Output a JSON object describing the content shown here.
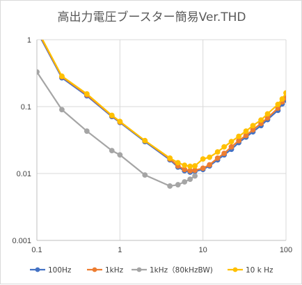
{
  "chart_data": {
    "type": "line",
    "title": "高出力電圧ブースター簡易Ver.THD",
    "x_scale": "log",
    "y_scale": "log",
    "xlim": [
      0.1,
      100
    ],
    "ylim": [
      0.001,
      1
    ],
    "x_ticks": [
      0.1,
      1,
      10,
      100
    ],
    "x_tick_labels": [
      "0.1",
      "1",
      "10",
      "100"
    ],
    "y_ticks": [
      0.001,
      0.01,
      0.1,
      1
    ],
    "y_tick_labels": [
      "0.001",
      "0.01",
      "0.1",
      "1"
    ],
    "grid": true,
    "legend_position": "bottom",
    "series": [
      {
        "name": "100Hz",
        "color": "#4472c4",
        "x": [
          0.1,
          0.2,
          0.4,
          0.8,
          1,
          2,
          4,
          5,
          6,
          7,
          8,
          10,
          12,
          15,
          18,
          22,
          27,
          33,
          40,
          50,
          60,
          80,
          90,
          100
        ],
        "y": [
          1.35,
          0.27,
          0.145,
          0.071,
          0.058,
          0.03,
          0.016,
          0.0125,
          0.011,
          0.0105,
          0.0108,
          0.0115,
          0.013,
          0.016,
          0.019,
          0.023,
          0.029,
          0.035,
          0.042,
          0.052,
          0.064,
          0.088,
          0.11,
          0.125
        ]
      },
      {
        "name": "1kHz",
        "color": "#ed7d31",
        "x": [
          0.1,
          0.2,
          0.4,
          0.8,
          1,
          2,
          4,
          5,
          6,
          7,
          8,
          10,
          12,
          15,
          18,
          22,
          27,
          33,
          40,
          50,
          60,
          80,
          90,
          100
        ],
        "y": [
          1.4,
          0.28,
          0.15,
          0.073,
          0.059,
          0.031,
          0.0165,
          0.013,
          0.0115,
          0.011,
          0.0112,
          0.012,
          0.0135,
          0.017,
          0.02,
          0.025,
          0.031,
          0.037,
          0.045,
          0.056,
          0.068,
          0.095,
          0.118,
          0.135
        ]
      },
      {
        "name": "1kHz（80kHzBW)",
        "color": "#a5a5a5",
        "x": [
          0.1,
          0.2,
          0.4,
          0.8,
          1,
          2,
          4,
          5,
          6,
          7,
          8
        ],
        "y": [
          0.33,
          0.09,
          0.043,
          0.022,
          0.019,
          0.0095,
          0.0065,
          0.0068,
          0.0075,
          0.0082,
          0.0092
        ]
      },
      {
        "name": "10 k Hz",
        "color": "#ffc000",
        "x": [
          0.1,
          0.2,
          0.4,
          0.8,
          1,
          2,
          4,
          5,
          6,
          7,
          8,
          10,
          12,
          15,
          18,
          22,
          27,
          33,
          40,
          50,
          60,
          80,
          90,
          100
        ],
        "y": [
          1.45,
          0.285,
          0.155,
          0.074,
          0.06,
          0.031,
          0.017,
          0.0145,
          0.0133,
          0.0128,
          0.013,
          0.0165,
          0.0175,
          0.021,
          0.025,
          0.03,
          0.036,
          0.043,
          0.052,
          0.063,
          0.078,
          0.108,
          0.13,
          0.16
        ]
      }
    ]
  }
}
